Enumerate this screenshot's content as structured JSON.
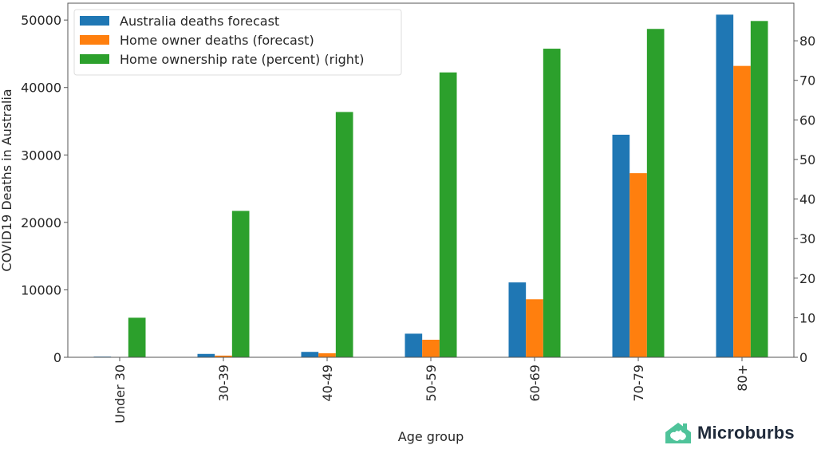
{
  "chart_data": {
    "type": "bar",
    "title": "",
    "xlabel": "Age group",
    "ylabel": "COVID19 Deaths in Australia",
    "y2label": "",
    "categories": [
      "Under 30",
      "30-39",
      "40-49",
      "50-59",
      "60-69",
      "70-79",
      "80+"
    ],
    "series": [
      {
        "name": "Australia deaths forecast",
        "axis": "left",
        "color": "#1f77b4",
        "values": [
          100,
          500,
          800,
          3500,
          11100,
          33000,
          50800
        ]
      },
      {
        "name": "Home owner deaths (forecast)",
        "axis": "left",
        "color": "#ff7f0e",
        "values": [
          10,
          250,
          600,
          2600,
          8600,
          27300,
          43200
        ]
      },
      {
        "name": "Home ownership rate (percent) (right)",
        "axis": "right",
        "color": "#2ca02c",
        "values": [
          10,
          37,
          62,
          72,
          78,
          83,
          85
        ]
      }
    ],
    "ylim": [
      0,
      52500
    ],
    "y2lim": [
      0,
      89.5
    ],
    "yticks": [
      0,
      10000,
      20000,
      30000,
      40000,
      50000
    ],
    "y2ticks": [
      0,
      10,
      20,
      30,
      40,
      50,
      60,
      70,
      80
    ],
    "grid": false,
    "legend": "top-left",
    "xtick_rotation": 90
  },
  "brand": {
    "name": "Microburbs",
    "icon": "house-australia-icon",
    "color": "#4fc39a"
  }
}
